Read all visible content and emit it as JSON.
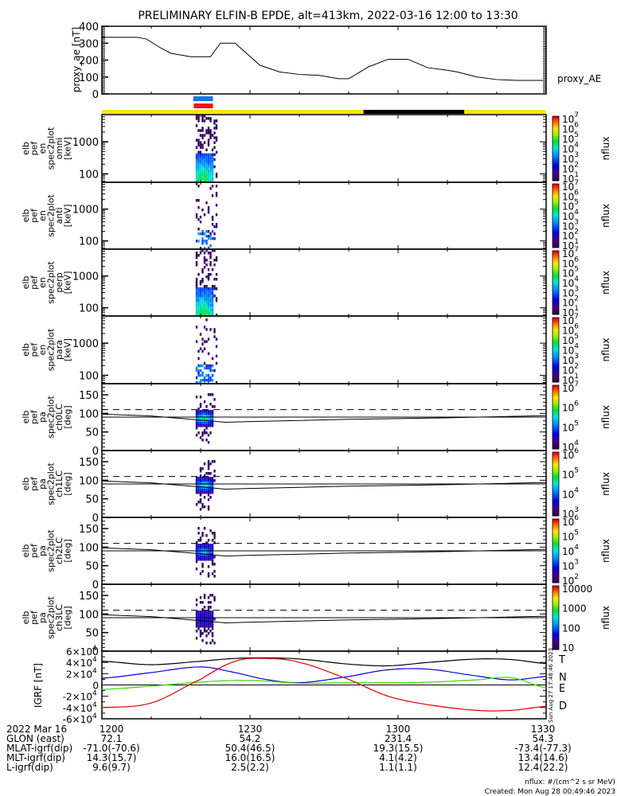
{
  "title": "PRELIMINARY ELFIN-B EPDE, alt=413km, 2022-03-16 12:00 to 13:30",
  "colors": {
    "sun_bar": "#f7e60a",
    "shadow_bar": "#000000",
    "science_bar_blue": "#1177ee",
    "science_bar_red": "#ee1111",
    "igrf_T": "#000000",
    "igrf_N": "#0000dd",
    "igrf_E": "#33dd00",
    "igrf_D": "#dd0000"
  },
  "time_axis": {
    "start_min": 0,
    "end_min": 90,
    "major_ticks_min": [
      0,
      30,
      60,
      90
    ],
    "minor_tick_step_min": 10
  },
  "footer": {
    "row_labels": [
      "2022 Mar 16",
      "GLON (east)",
      "MLAT-igrf(dip)",
      "MLT-igrf(dip)",
      "L-igrf(dip)"
    ],
    "columns": [
      {
        "values": [
          "1200",
          "72.1",
          "-71.0(-70.6)",
          "14.3(15.7)",
          "9.6(9.7)"
        ]
      },
      {
        "values": [
          "1230",
          "54.2",
          "50.4(46.5)",
          "16.0(16.5)",
          "2.5(2.2)"
        ]
      },
      {
        "values": [
          "1300",
          "231.4",
          "19.3(15.5)",
          "4.1(4.2)",
          "1.1(1.1)"
        ]
      },
      {
        "values": [
          "1330",
          "54.3",
          "-73.4(-77.3)",
          "13.4(14.6)",
          "12.4(22.2)"
        ]
      }
    ],
    "units_note": "nflux: #/(cm^2 s sr MeV)",
    "created": "Created: Mon Aug 28 00:49:46 2023",
    "side_stamp": "Sun Aug 27 17:48:46 2023"
  },
  "chart_data": [
    {
      "type": "line",
      "panel": "proxy_ae",
      "ylabel": "proxy_ae [nT]",
      "legend": "proxy_AE",
      "ylim": [
        0,
        400
      ],
      "yticks": [
        "0",
        "100",
        "200",
        "300",
        "400"
      ],
      "x_min": [
        0,
        7,
        9,
        12,
        14,
        18,
        22,
        24,
        27,
        32,
        36,
        40,
        44,
        48,
        50,
        54,
        58,
        62,
        66,
        70,
        72,
        76,
        80,
        84,
        86,
        90
      ],
      "y": [
        335,
        335,
        325,
        270,
        240,
        220,
        220,
        300,
        300,
        170,
        130,
        115,
        110,
        90,
        90,
        160,
        205,
        205,
        155,
        140,
        130,
        100,
        85,
        80,
        80,
        80
      ]
    },
    {
      "type": "heatmap",
      "panel": "omni",
      "ylabel": [
        "elb",
        "pef",
        "en",
        "spec2plot",
        "omni",
        "[keV]"
      ],
      "yticks": [
        "100",
        "1000"
      ],
      "colorbar": {
        "label": "nflux",
        "ticks": [
          "10",
          "10",
          "10",
          "10",
          "10",
          "10",
          "10"
        ],
        "exponents": [
          "1",
          "2",
          "3",
          "4",
          "5",
          "6",
          "7"
        ]
      },
      "active_window_min": [
        19,
        22
      ],
      "peak_energy_keV": 80
    },
    {
      "type": "heatmap",
      "panel": "anti",
      "ylabel": [
        "elb",
        "pef",
        "en",
        "spec2plot",
        "anti",
        "[keV]"
      ],
      "yticks": [
        "100",
        "1000"
      ],
      "colorbar": {
        "label": "nflux",
        "ticks": [
          "10",
          "10",
          "10",
          "10",
          "10",
          "10",
          "10"
        ],
        "exponents": [
          "1",
          "2",
          "3",
          "4",
          "5",
          "6",
          "7"
        ]
      },
      "active_window_min": [
        19,
        22
      ]
    },
    {
      "type": "heatmap",
      "panel": "perp",
      "ylabel": [
        "elb",
        "pef",
        "en",
        "spec2plot",
        "perp",
        "[keV]"
      ],
      "yticks": [
        "100",
        "1000"
      ],
      "colorbar": {
        "label": "nflux",
        "ticks": [
          "10",
          "10",
          "10",
          "10",
          "10",
          "10",
          "10"
        ],
        "exponents": [
          "1",
          "2",
          "3",
          "4",
          "5",
          "6",
          "7"
        ]
      },
      "active_window_min": [
        19,
        22
      ]
    },
    {
      "type": "heatmap",
      "panel": "para",
      "ylabel": [
        "elb",
        "pef",
        "en",
        "spec2plot",
        "para",
        "[keV]"
      ],
      "yticks": [
        "100",
        "1000"
      ],
      "colorbar": {
        "label": "nflux",
        "ticks": [
          "10",
          "10",
          "10",
          "10",
          "10",
          "10",
          "10"
        ],
        "exponents": [
          "1",
          "2",
          "3",
          "4",
          "5",
          "6",
          "7"
        ]
      },
      "active_window_min": [
        19,
        22
      ]
    },
    {
      "type": "heatmap",
      "panel": "ch0LC",
      "ylabel": [
        "elb",
        "pef",
        "pa",
        "spec2plot",
        "ch0LC",
        "[deg]"
      ],
      "yticks": [
        "0",
        "50",
        "100",
        "150"
      ],
      "ylim": [
        0,
        180
      ],
      "dashed_line_deg": 110,
      "solid_line_deg": 90,
      "colorbar": {
        "label": "nflux",
        "ticks": [
          "10",
          "10",
          "10",
          "10"
        ],
        "exponents": [
          "4",
          "5",
          "6",
          "7"
        ]
      },
      "active_window_min": [
        19,
        22
      ]
    },
    {
      "type": "heatmap",
      "panel": "ch1LC",
      "ylabel": [
        "elb",
        "pef",
        "pa",
        "spec2plot",
        "ch1LC",
        "[deg]"
      ],
      "yticks": [
        "0",
        "50",
        "100",
        "150"
      ],
      "ylim": [
        0,
        180
      ],
      "dashed_line_deg": 110,
      "solid_line_deg": 90,
      "colorbar": {
        "label": "nflux",
        "ticks": [
          "10",
          "10",
          "10",
          "10"
        ],
        "exponents": [
          "3",
          "4",
          "5",
          "6"
        ]
      },
      "active_window_min": [
        19,
        22
      ]
    },
    {
      "type": "heatmap",
      "panel": "ch2LC",
      "ylabel": [
        "elb",
        "pef",
        "pa",
        "spec2plot",
        "ch2LC",
        "[deg]"
      ],
      "yticks": [
        "0",
        "50",
        "100",
        "150"
      ],
      "ylim": [
        0,
        180
      ],
      "dashed_line_deg": 110,
      "solid_line_deg": 90,
      "colorbar": {
        "label": "nflux",
        "ticks": [
          "10",
          "10",
          "10",
          "10",
          "10"
        ],
        "exponents": [
          "2",
          "3",
          "4",
          "5",
          "6"
        ]
      },
      "active_window_min": [
        19,
        22
      ]
    },
    {
      "type": "heatmap",
      "panel": "ch3LC",
      "ylabel": [
        "elb",
        "pef",
        "pa",
        "spec2plot",
        "ch3LC",
        "[deg]"
      ],
      "yticks": [
        "0",
        "50",
        "100",
        "150"
      ],
      "ylim": [
        0,
        180
      ],
      "dashed_line_deg": 110,
      "solid_line_deg": 90,
      "colorbar": {
        "label": "nflux",
        "ticks": [
          "10",
          "100",
          "1000",
          "10000"
        ],
        "exponents": [
          "",
          "",
          "",
          ""
        ]
      },
      "active_window_min": [
        19,
        22
      ]
    },
    {
      "type": "line",
      "panel": "igrf",
      "ylabel": "IGRF [nT]",
      "ylim": [
        -60000,
        60000
      ],
      "yticks": [
        "-6×10",
        "-4×10",
        "-2×10",
        "0",
        "2×10",
        "4×10",
        "6×10"
      ],
      "ytick_exponent": "4",
      "x_min": [
        0,
        10,
        20,
        27,
        33,
        40,
        50,
        58,
        66,
        76,
        83,
        90
      ],
      "series": [
        {
          "name": "T",
          "values": [
            42000,
            36000,
            42000,
            47000,
            48000,
            46000,
            37000,
            34000,
            40000,
            46000,
            45000,
            38000
          ]
        },
        {
          "name": "N",
          "values": [
            12000,
            22000,
            32000,
            22000,
            10000,
            4000,
            15000,
            27000,
            28000,
            16000,
            9000,
            15000
          ]
        },
        {
          "name": "E",
          "values": [
            -8000,
            -2000,
            5000,
            8000,
            7000,
            3000,
            4000,
            4000,
            5000,
            9000,
            13000,
            -5000
          ]
        },
        {
          "name": "D",
          "values": [
            -40000,
            -32000,
            10000,
            42000,
            47000,
            40000,
            10000,
            -20000,
            -35000,
            -45000,
            -45000,
            -38000
          ]
        }
      ]
    }
  ]
}
